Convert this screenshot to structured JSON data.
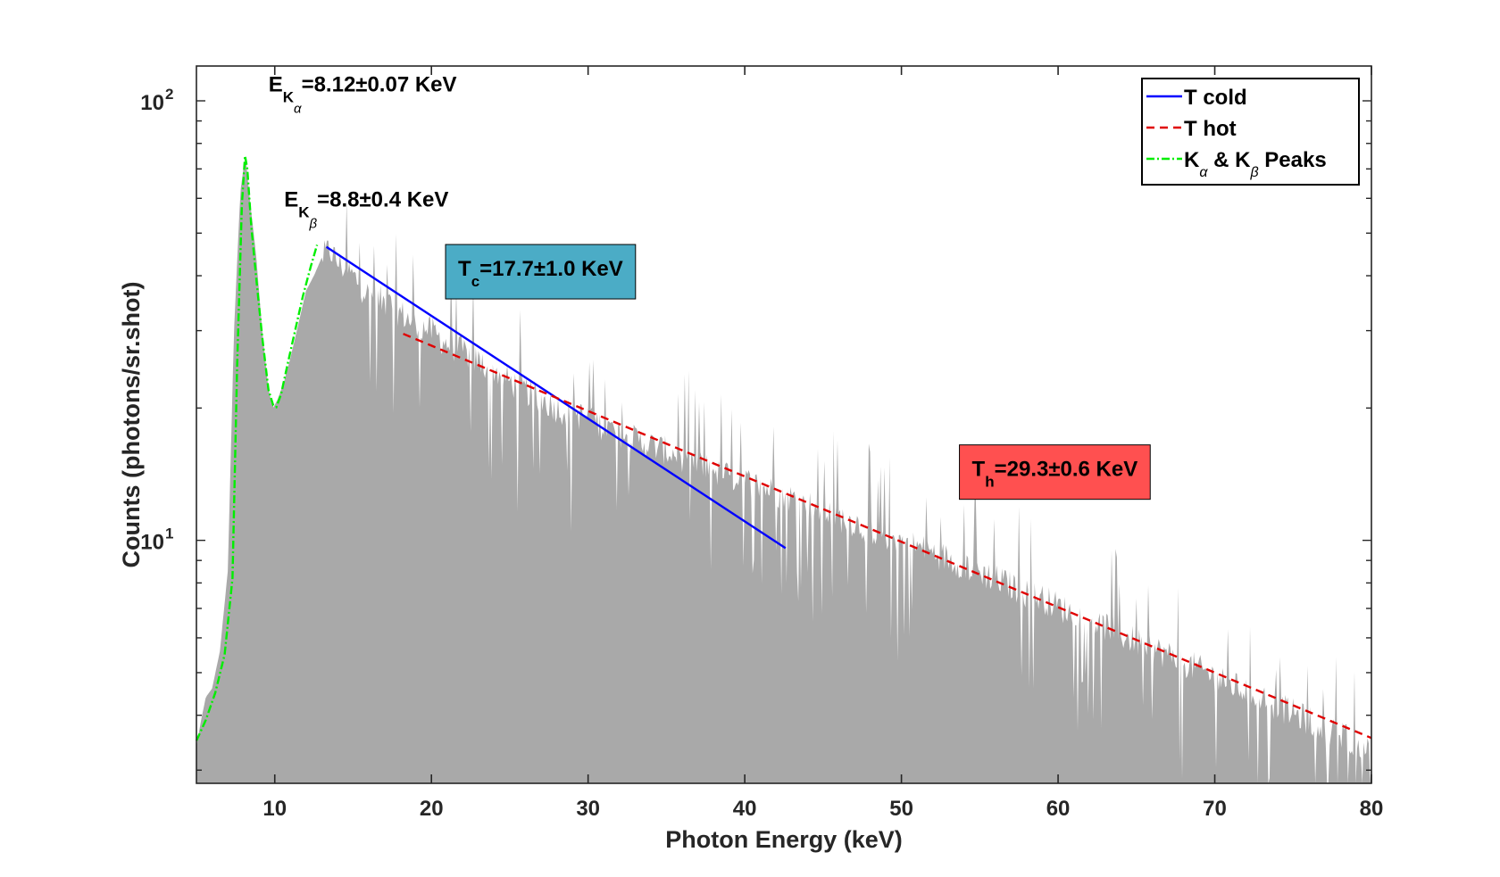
{
  "chart_data": {
    "type": "area",
    "xlabel": "Photon Energy (keV)",
    "ylabel": "Counts (photons/sr.shot)",
    "xlim": [
      5,
      80
    ],
    "ylim": [
      2.8,
      120
    ],
    "yscale": "log",
    "x_ticks": [
      10,
      20,
      30,
      40,
      50,
      60,
      70,
      80
    ],
    "x_tick_labels": [
      "10",
      "20",
      "30",
      "40",
      "50",
      "60",
      "70",
      "80"
    ],
    "y_ticks": [
      10,
      100
    ],
    "y_tick_labels": [
      {
        "base": "10",
        "exp": "1"
      },
      {
        "base": "10",
        "exp": "2"
      }
    ],
    "grid": false,
    "legend_position": "top-right",
    "spectrum": {
      "color": "#a9a9a9",
      "x": [
        5,
        5.3,
        5.6,
        6,
        6.5,
        7,
        7.4,
        7.8,
        8.0,
        8.15,
        8.4,
        8.8,
        9.2,
        9.6,
        9.9,
        10.2,
        10.6,
        11,
        11.5,
        12,
        12.5,
        13,
        13.5,
        14,
        15,
        16,
        17,
        18,
        19,
        20,
        21,
        22,
        23,
        24,
        25,
        26,
        27,
        28,
        29,
        30,
        31,
        32,
        33,
        34,
        35,
        36,
        37,
        38,
        39,
        40,
        41,
        42,
        43,
        44,
        45,
        46,
        47,
        48,
        49,
        50,
        51,
        52,
        53,
        54,
        55,
        56,
        57,
        58,
        59,
        60,
        61,
        62,
        63,
        64,
        65,
        66,
        67,
        68,
        69,
        70,
        71,
        72,
        73,
        74,
        75,
        76,
        77,
        78,
        79,
        80
      ],
      "counts": [
        3.4,
        3.9,
        4.4,
        4.6,
        5.6,
        8.5,
        30,
        62,
        70,
        74,
        60,
        45,
        30,
        22,
        20,
        21,
        23,
        26,
        31,
        37,
        40,
        44,
        46,
        43,
        40,
        36,
        35,
        33,
        31,
        30,
        28,
        27,
        25.5,
        24.5,
        23,
        22,
        21,
        20,
        19.5,
        19,
        18.2,
        17.5,
        17,
        16.5,
        16,
        15.5,
        15,
        14.5,
        14,
        13.7,
        13.3,
        12.9,
        12.5,
        12.1,
        11.7,
        11.3,
        11,
        10.6,
        10.3,
        10,
        9.7,
        9.4,
        9.1,
        8.8,
        8.5,
        8.2,
        7.9,
        7.6,
        7.4,
        7.1,
        6.8,
        6.6,
        6.4,
        6.1,
        5.9,
        5.7,
        5.5,
        5.3,
        5.1,
        4.9,
        4.7,
        4.55,
        4.4,
        4.2,
        4.05,
        3.9,
        3.75,
        3.6,
        3.5,
        3.4
      ]
    },
    "series": [
      {
        "name": "T cold",
        "color": "#0000ff",
        "style": "solid",
        "x": [
          13.3,
          42.6
        ],
        "y": [
          46.5,
          9.6
        ]
      },
      {
        "name": "T hot",
        "color": "#e00000",
        "style": "dashed",
        "x": [
          18.2,
          80
        ],
        "y": [
          29.5,
          3.55
        ]
      },
      {
        "name": "K_alpha & K_beta Peaks",
        "color": "#00ee00",
        "style": "dashdot",
        "x": [
          5,
          5.6,
          6.2,
          6.8,
          7.3,
          7.6,
          7.9,
          8.1,
          8.25,
          8.5,
          8.8,
          9.2,
          9.6,
          9.9,
          10.1,
          10.4,
          10.8,
          11.3,
          11.8,
          12.3,
          12.7
        ],
        "y": [
          3.5,
          3.9,
          4.5,
          5.5,
          8.2,
          25,
          58,
          75,
          70,
          52,
          40,
          29,
          22,
          20.3,
          20.1,
          21.5,
          25,
          30,
          36,
          42,
          47
        ]
      }
    ],
    "legend": {
      "entries": [
        {
          "base": "T cold",
          "color": "#0000ff",
          "style": "solid"
        },
        {
          "base": "T hot",
          "color": "#e00000",
          "style": "dashed"
        },
        {
          "base": "K",
          "sub1": "α",
          "mid": " & K",
          "sub2": "β",
          "tail": " Peaks",
          "color": "#00ee00",
          "style": "dashdot"
        }
      ]
    },
    "annotations": [
      {
        "id": "e-kalpha",
        "pre": "E",
        "sub": "K",
        "subsub": "α",
        "post": "=8.12±0.07 KeV",
        "x": 9.6,
        "y": 105
      },
      {
        "id": "e-kbeta",
        "pre": "E",
        "sub": "K",
        "subsub": "β",
        "post": "=8.8±0.4 KeV",
        "x": 10.6,
        "y": 57.5
      },
      {
        "id": "tc",
        "pre": "T",
        "sub": "c",
        "post": "=17.7±1.0 KeV",
        "box_color": "#4bacc6",
        "x": 21.7,
        "y": 40
      },
      {
        "id": "th",
        "pre": "T",
        "sub": "h",
        "post": "=29.3±0.6 KeV",
        "box_color": "#ff5050",
        "x": 54.5,
        "y": 14
      }
    ]
  }
}
